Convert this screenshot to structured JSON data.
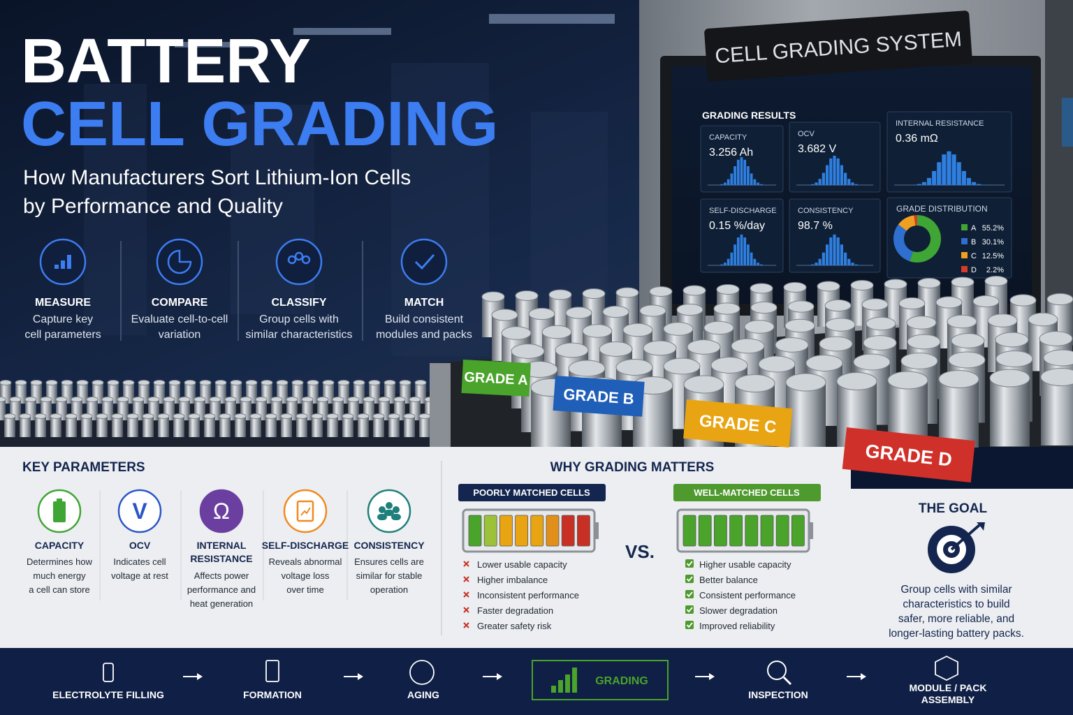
{
  "header": {
    "title_line1": "BATTERY",
    "title_line2": "CELL GRADING",
    "subtitle_lines": [
      "How Manufacturers Sort Lithium-Ion Cells",
      "by Performance and Quality"
    ]
  },
  "steps": [
    {
      "label": "MEASURE",
      "desc_lines": [
        "Capture key",
        "cell parameters"
      ]
    },
    {
      "label": "COMPARE",
      "desc_lines": [
        "Evaluate cell-to-cell",
        "variation"
      ]
    },
    {
      "label": "CLASSIFY",
      "desc_lines": [
        "Group cells with",
        "similar characteristics"
      ]
    },
    {
      "label": "MATCH",
      "desc_lines": [
        "Build consistent",
        "modules and packs"
      ]
    }
  ],
  "machine": {
    "sign": "CELL GRADING SYSTEM",
    "screen_title": "GRADING RESULTS",
    "metrics": [
      {
        "label": "CAPACITY",
        "value": "3.256 Ah"
      },
      {
        "label": "OCV",
        "value": "3.682 V"
      },
      {
        "label": "INTERNAL RESISTANCE",
        "value": "0.36 mΩ"
      },
      {
        "label": "SELF-DISCHARGE",
        "value": "0.15 %/day"
      },
      {
        "label": "CONSISTENCY",
        "value": "98.7 %"
      }
    ],
    "grade_distribution": {
      "title": "GRADE DISTRIBUTION",
      "grades": [
        "A",
        "B",
        "C",
        "D"
      ],
      "values": [
        55.2,
        30.1,
        12.5,
        2.2
      ],
      "value_labels": [
        "55.2%",
        "30.1%",
        "12.5%",
        "2.2%"
      ],
      "colors": [
        "#3fa535",
        "#2f6fd0",
        "#f0a020",
        "#d83a2a"
      ]
    },
    "tray_labels": [
      "GRADE A",
      "GRADE B",
      "GRADE C",
      "GRADE D"
    ]
  },
  "key_parameters": {
    "title": "KEY PARAMETERS",
    "items": [
      {
        "name_lines": [
          "CAPACITY"
        ],
        "desc_lines": [
          "Determines how",
          "much energy",
          "a cell can store"
        ]
      },
      {
        "symbol": "V",
        "name_lines": [
          "OCV"
        ],
        "desc_lines": [
          "Indicates cell",
          "voltage at rest"
        ]
      },
      {
        "symbol": "Ω",
        "name_lines": [
          "INTERNAL",
          "RESISTANCE"
        ],
        "desc_lines": [
          "Affects power",
          "performance and",
          "heat generation"
        ]
      },
      {
        "name_lines": [
          "SELF-DISCHARGE"
        ],
        "desc_lines": [
          "Reveals abnormal",
          "voltage loss",
          "over time"
        ]
      },
      {
        "name_lines": [
          "CONSISTENCY"
        ],
        "desc_lines": [
          "Ensures cells are",
          "similar for stable",
          "operation"
        ]
      }
    ]
  },
  "why_grading": {
    "title": "WHY GRADING MATTERS",
    "poor": {
      "header": "POORLY MATCHED CELLS",
      "items": [
        "Lower usable capacity",
        "Higher imbalance",
        "Inconsistent performance",
        "Faster degradation",
        "Greater safety risk"
      ]
    },
    "vs": "VS.",
    "good": {
      "header": "WELL-MATCHED CELLS",
      "items": [
        "Higher usable capacity",
        "Better balance",
        "Consistent performance",
        "Slower degradation",
        "Improved reliability"
      ]
    }
  },
  "goal": {
    "title": "THE GOAL",
    "text_lines": [
      "Group cells with similar",
      "characteristics to build",
      "safer, more reliable, and",
      "longer-lasting battery packs."
    ]
  },
  "process": [
    {
      "label_lines": [
        "ELECTROLYTE FILLING"
      ]
    },
    {
      "label_lines": [
        "FORMATION"
      ]
    },
    {
      "label_lines": [
        "AGING"
      ]
    },
    {
      "label_lines": [
        "GRADING"
      ]
    },
    {
      "label_lines": [
        "INSPECTION"
      ]
    },
    {
      "label_lines": [
        "MODULE / PACK",
        "ASSEMBLY"
      ]
    }
  ]
}
